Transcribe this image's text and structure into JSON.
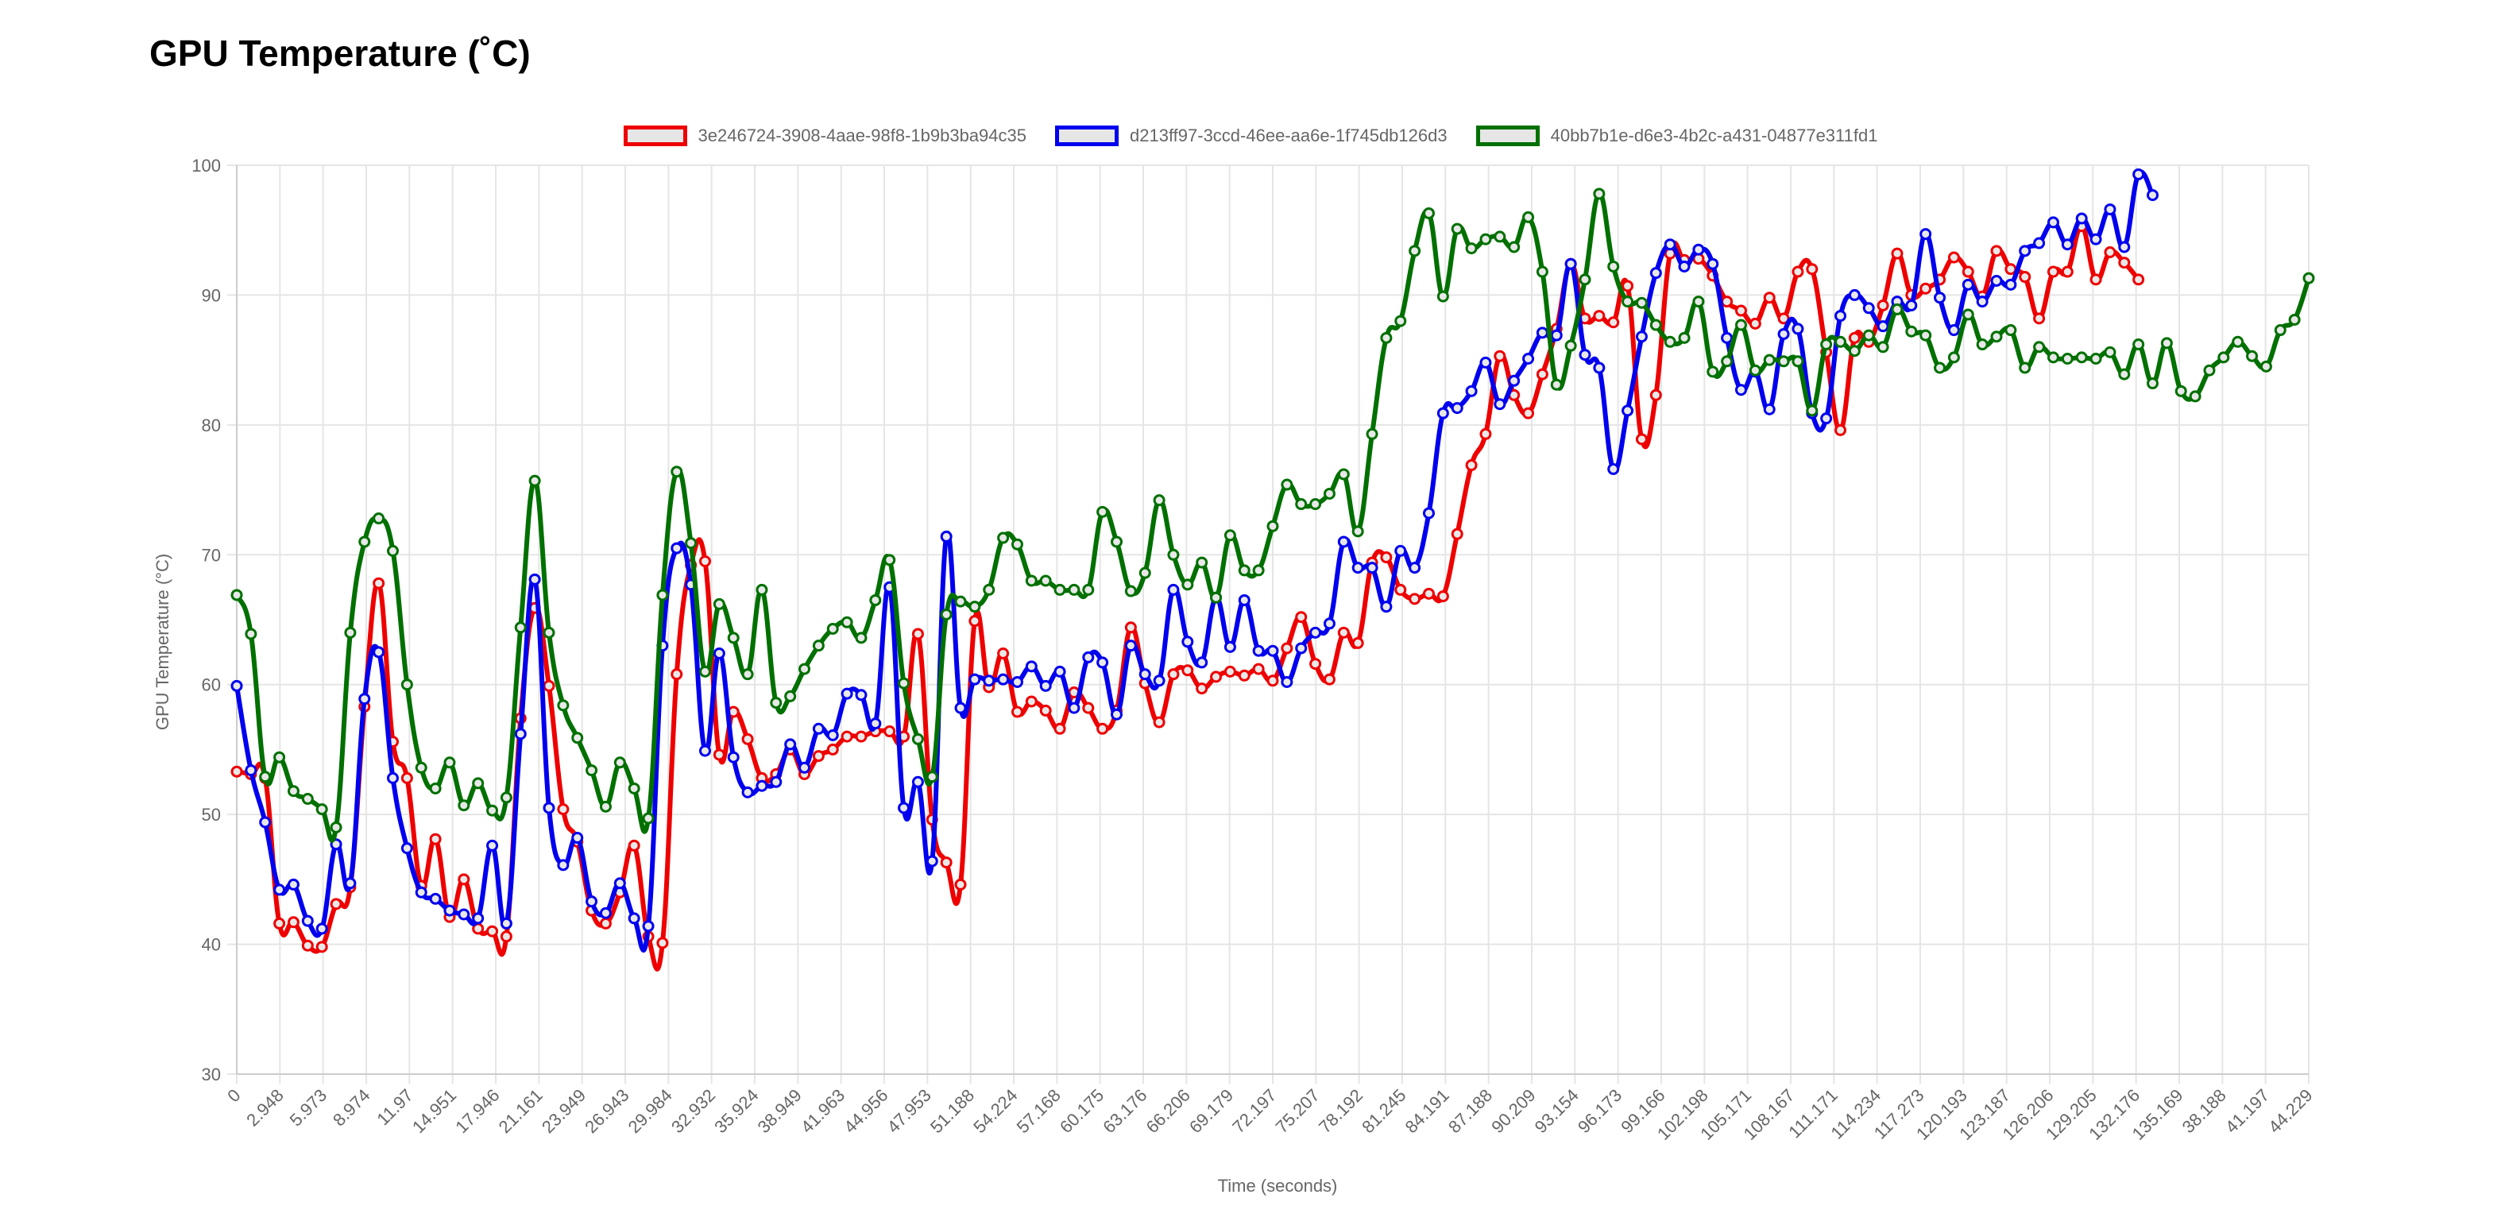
{
  "page": {
    "title": "GPU Temperature (˚C)"
  },
  "chart_data": {
    "type": "line",
    "title": "GPU Temperature (˚C)",
    "xlabel": "Time (seconds)",
    "ylabel": "GPU Temperature (°C)",
    "ylim": [
      30,
      100
    ],
    "yticks": [
      30,
      40,
      50,
      60,
      70,
      80,
      90,
      100
    ],
    "grid": true,
    "legend_position": "top-center",
    "x_tick_labels": [
      "0",
      "2.948",
      "5.973",
      "8.974",
      "11.97",
      "14.951",
      "17.946",
      "21.161",
      "23.949",
      "26.943",
      "29.984",
      "32.932",
      "35.924",
      "38.949",
      "41.963",
      "44.956",
      "47.953",
      "51.188",
      "54.224",
      "57.168",
      "60.175",
      "63.176",
      "66.206",
      "69.179",
      "72.197",
      "75.207",
      "78.192",
      "81.245",
      "84.191",
      "87.188",
      "90.209",
      "93.154",
      "96.173",
      "99.166",
      "102.198",
      "105.171",
      "108.167",
      "111.171",
      "114.234",
      "117.273",
      "120.193",
      "123.187",
      "126.206",
      "129.205",
      "132.176",
      "135.169",
      "38.188",
      "41.197",
      "44.229"
    ],
    "series": [
      {
        "name": "3e246724-3908-4aae-98f8-1b9b3ba94c35",
        "color": "#ee0000",
        "values": [
          53.3,
          53.1,
          52.8,
          41.6,
          41.7,
          39.9,
          39.8,
          43.1,
          44.4,
          58.3,
          67.8,
          55.6,
          52.8,
          44.5,
          48.1,
          42.1,
          45.0,
          41.2,
          41.0,
          40.6,
          57.4,
          65.9,
          59.9,
          50.4,
          47.9,
          42.6,
          41.6,
          44.0,
          47.6,
          40.6,
          40.1,
          60.8,
          69.2,
          69.5,
          54.6,
          57.9,
          55.8,
          52.8,
          53.1,
          55.0,
          53.1,
          54.5,
          55.0,
          56.0,
          56.0,
          56.4,
          56.4,
          56.0,
          63.9,
          49.6,
          46.3,
          44.6,
          64.9,
          59.8,
          62.4,
          57.9,
          58.7,
          58.0,
          56.6,
          59.4,
          58.2,
          56.6,
          58.0,
          64.4,
          60.1,
          57.1,
          60.8,
          61.1,
          59.7,
          60.6,
          61.0,
          60.7,
          61.2,
          60.3,
          62.8,
          65.2,
          61.6,
          60.4,
          64.0,
          63.2,
          69.4,
          69.8,
          67.3,
          66.6,
          67.0,
          66.8,
          71.6,
          76.9,
          79.3,
          85.3,
          82.3,
          80.9,
          83.9,
          87.4,
          92.4,
          88.2,
          88.4,
          87.9,
          90.7,
          78.9,
          82.3,
          93.2,
          92.7,
          92.8,
          91.5,
          89.5,
          88.8,
          87.8,
          89.8,
          88.2,
          91.8,
          92.0,
          85.6,
          79.6,
          86.7,
          86.4,
          89.2,
          93.2,
          90.0,
          90.5,
          91.2,
          92.9,
          91.8,
          89.9,
          93.4,
          92.0,
          91.4,
          88.2,
          91.8,
          91.8,
          95.3,
          91.2,
          93.3,
          92.5,
          91.2
        ]
      },
      {
        "name": "d213ff97-3ccd-46ee-aa6e-1f745db126d3",
        "color": "#0000ee",
        "values": [
          59.9,
          53.4,
          49.4,
          44.2,
          44.6,
          41.8,
          41.2,
          47.7,
          44.7,
          58.9,
          62.5,
          52.8,
          47.4,
          44.0,
          43.5,
          42.6,
          42.3,
          42.0,
          47.6,
          41.6,
          56.2,
          68.1,
          50.5,
          46.1,
          48.2,
          43.3,
          42.4,
          44.7,
          42.0,
          41.4,
          63.0,
          70.5,
          67.7,
          54.9,
          62.4,
          54.4,
          51.7,
          52.2,
          52.5,
          55.4,
          53.6,
          56.6,
          56.1,
          59.3,
          59.2,
          57.0,
          67.5,
          50.5,
          52.5,
          46.4,
          71.4,
          58.2,
          60.4,
          60.3,
          60.4,
          60.2,
          61.4,
          59.9,
          61.0,
          58.2,
          62.1,
          61.7,
          57.7,
          63.0,
          60.8,
          60.3,
          67.3,
          63.3,
          61.7,
          66.7,
          62.9,
          66.5,
          62.6,
          62.6,
          60.2,
          62.8,
          64.0,
          64.7,
          71.0,
          69.0,
          69.0,
          66.0,
          70.3,
          69.0,
          73.2,
          80.9,
          81.3,
          82.6,
          84.8,
          81.6,
          83.4,
          85.1,
          87.1,
          86.9,
          92.4,
          85.4,
          84.4,
          76.6,
          81.1,
          86.8,
          91.7,
          93.9,
          92.2,
          93.5,
          92.4,
          86.7,
          82.7,
          84.1,
          81.2,
          87.0,
          87.4,
          80.9,
          80.5,
          88.4,
          90.0,
          89.0,
          87.6,
          89.5,
          89.2,
          94.7,
          89.8,
          87.3,
          90.8,
          89.5,
          91.1,
          90.8,
          93.4,
          94.0,
          95.6,
          93.9,
          95.9,
          94.3,
          96.6,
          93.7,
          99.3,
          97.7
        ]
      },
      {
        "name": "40bb7b1e-d6e3-4b2c-a431-04877e311fd1",
        "color": "#007000",
        "values": [
          66.9,
          63.9,
          52.9,
          54.4,
          51.8,
          51.2,
          50.4,
          49.0,
          64.0,
          71.0,
          72.8,
          70.3,
          60.0,
          53.6,
          52.0,
          54.0,
          50.7,
          52.4,
          50.3,
          51.3,
          64.4,
          75.7,
          64.0,
          58.4,
          55.9,
          53.4,
          50.6,
          54.0,
          52.0,
          49.7,
          66.9,
          76.4,
          70.9,
          61.0,
          66.2,
          63.6,
          60.8,
          67.3,
          58.6,
          59.1,
          61.2,
          63.0,
          64.3,
          64.8,
          63.6,
          66.5,
          69.6,
          60.1,
          55.8,
          52.9,
          65.4,
          66.4,
          66.0,
          67.3,
          71.3,
          70.8,
          68.0,
          68.0,
          67.3,
          67.3,
          67.3,
          73.3,
          71.0,
          67.2,
          68.6,
          74.2,
          70.0,
          67.7,
          69.4,
          66.7,
          71.5,
          68.8,
          68.8,
          72.2,
          75.4,
          73.9,
          73.9,
          74.7,
          76.2,
          71.8,
          79.3,
          86.7,
          88.0,
          93.4,
          96.3,
          89.9,
          95.1,
          93.6,
          94.3,
          94.5,
          93.7,
          96.0,
          91.8,
          83.1,
          86.1,
          91.2,
          97.8,
          92.2,
          89.5,
          89.4,
          87.7,
          86.4,
          86.7,
          89.5,
          84.1,
          84.9,
          87.7,
          84.2,
          85.0,
          84.9,
          84.9,
          81.1,
          86.2,
          86.4,
          85.7,
          86.9,
          86.0,
          88.9,
          87.2,
          86.9,
          84.4,
          85.2,
          88.5,
          86.2,
          86.8,
          87.3,
          84.4,
          86.0,
          85.2,
          85.1,
          85.2,
          85.1,
          85.6,
          83.9,
          86.2,
          83.2,
          86.3,
          82.6,
          82.2,
          84.2,
          85.2,
          86.4,
          85.3,
          84.5,
          87.3,
          88.1,
          91.3
        ]
      }
    ]
  }
}
